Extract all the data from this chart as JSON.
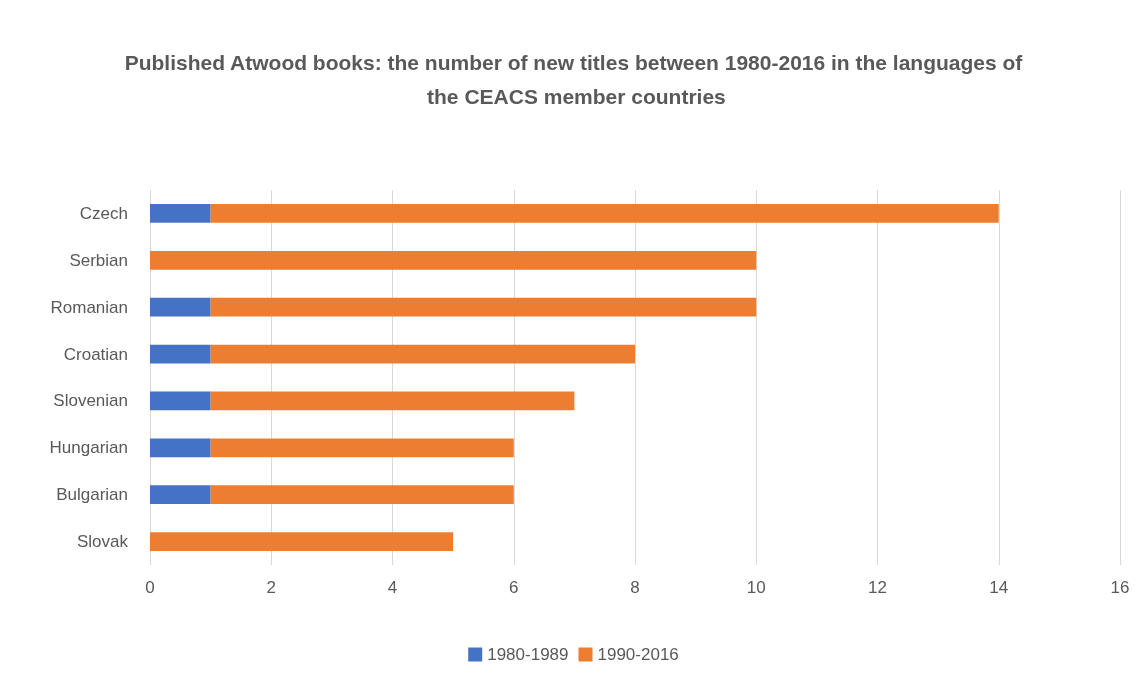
{
  "chart_data": {
    "type": "bar",
    "orientation": "horizontal",
    "stacked": true,
    "title": "Published Atwood books: the number of new titles between 1980-2016 in the languages of the CEACS member countries",
    "categories": [
      "Czech",
      "Serbian",
      "Romanian",
      "Croatian",
      "Slovenian",
      "Hungarian",
      "Bulgarian",
      "Slovak"
    ],
    "series": [
      {
        "name": "1980-1989",
        "color": "#4472c4",
        "values": [
          1,
          0,
          1,
          1,
          1,
          1,
          1,
          0
        ]
      },
      {
        "name": "1990-2016",
        "color": "#ed7d31",
        "values": [
          13,
          10,
          9,
          7,
          6,
          5,
          5,
          5
        ]
      }
    ],
    "xlim": [
      0,
      16
    ],
    "xticks": [
      0,
      2,
      4,
      6,
      8,
      10,
      12,
      14,
      16
    ],
    "grid": "x",
    "legend": "bottom"
  }
}
